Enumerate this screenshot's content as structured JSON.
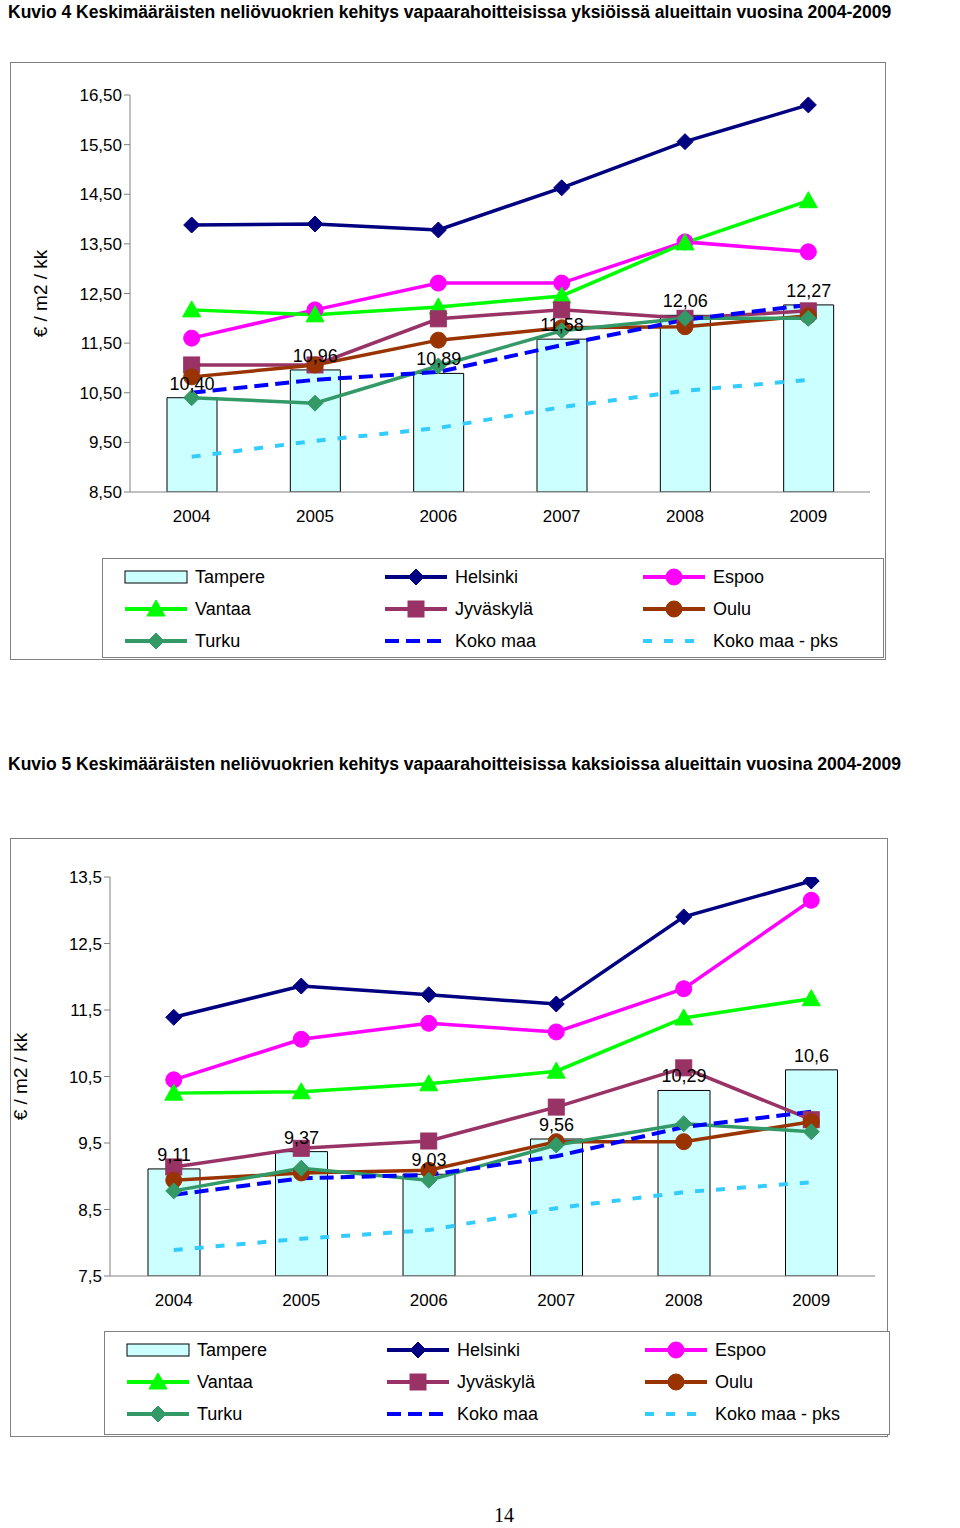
{
  "chart_data": [
    {
      "type": "bar",
      "title": "Kuvio 4 Keskimääräisten neliövuokrien kehitys vapaarahoitteisissa yksiöissä alueittain vuosina 2004-2009",
      "ylabel": "€ / m2 / kk",
      "categories": [
        "2004",
        "2005",
        "2006",
        "2007",
        "2008",
        "2009"
      ],
      "ylim": [
        8.5,
        16.5
      ],
      "yticks": [
        {
          "value": 8.5,
          "label": "8,50"
        },
        {
          "value": 9.5,
          "label": "9,50"
        },
        {
          "value": 10.5,
          "label": "10,50"
        },
        {
          "value": 11.5,
          "label": "11,50"
        },
        {
          "value": 12.5,
          "label": "12,50"
        },
        {
          "value": 13.5,
          "label": "13,50"
        },
        {
          "value": 14.5,
          "label": "14,50"
        },
        {
          "value": 15.5,
          "label": "15,50"
        },
        {
          "value": 16.5,
          "label": "16,50"
        }
      ],
      "grid": false,
      "legend": "bottom",
      "data_labels": true,
      "series": [
        {
          "name": "Tampere",
          "type": "bar",
          "color": "#ccffff",
          "values": [
            10.4,
            10.96,
            10.89,
            11.58,
            12.06,
            12.27
          ],
          "value_labels": [
            "10,40",
            "10,96",
            "10,89",
            "11,58",
            "12,06",
            "12,27"
          ]
        },
        {
          "name": "Helsinki",
          "type": "line",
          "color": "#000080",
          "marker": "diamond",
          "line_style": "solid",
          "values": [
            13.88,
            13.9,
            13.78,
            14.63,
            15.56,
            16.3
          ]
        },
        {
          "name": "Espoo",
          "type": "line",
          "color": "#ff00ff",
          "marker": "circle",
          "line_style": "solid",
          "values": [
            11.6,
            12.17,
            12.71,
            12.71,
            13.54,
            13.34
          ]
        },
        {
          "name": "Vantaa",
          "type": "line",
          "color": "#00ff00",
          "marker": "triangle",
          "line_style": "solid",
          "values": [
            12.17,
            12.07,
            12.23,
            12.45,
            13.52,
            14.37
          ]
        },
        {
          "name": "Jyväskylä",
          "type": "line",
          "color": "#993366",
          "marker": "square",
          "line_style": "solid",
          "values": [
            11.06,
            11.06,
            11.99,
            12.17,
            12.0,
            12.15
          ]
        },
        {
          "name": "Oulu",
          "type": "line",
          "color": "#993300",
          "marker": "circle",
          "line_style": "solid",
          "values": [
            10.82,
            11.06,
            11.56,
            11.81,
            11.83,
            12.05
          ]
        },
        {
          "name": "Turku",
          "type": "line",
          "color": "#339966",
          "marker": "diamond",
          "line_style": "solid",
          "values": [
            10.4,
            10.29,
            11.04,
            11.75,
            12.0,
            12.0
          ]
        },
        {
          "name": "Koko maa",
          "type": "line",
          "color": "#0000ff",
          "marker": "none",
          "line_style": "dashed",
          "values": [
            10.5,
            10.76,
            10.92,
            11.46,
            11.97,
            12.27
          ]
        },
        {
          "name": "Koko maa - pks",
          "type": "line",
          "color": "#33ccff",
          "marker": "none",
          "line_style": "dashed",
          "values": [
            9.21,
            9.53,
            9.79,
            10.21,
            10.54,
            10.76
          ]
        }
      ]
    },
    {
      "type": "bar",
      "title": "Kuvio 5 Keskimääräisten neliövuokrien kehitys vapaarahoitteisissa kaksioissa alueittain vuosina 2004-2009",
      "ylabel": "€ / m2 / kk",
      "categories": [
        "2004",
        "2005",
        "2006",
        "2007",
        "2008",
        "2009"
      ],
      "ylim": [
        7.5,
        13.5
      ],
      "yticks": [
        {
          "value": 7.5,
          "label": "7,5"
        },
        {
          "value": 8.5,
          "label": "8,5"
        },
        {
          "value": 9.5,
          "label": "9,5"
        },
        {
          "value": 10.5,
          "label": "10,5"
        },
        {
          "value": 11.5,
          "label": "11,5"
        },
        {
          "value": 12.5,
          "label": "12,5"
        },
        {
          "value": 13.5,
          "label": "13,5"
        }
      ],
      "grid": false,
      "legend": "bottom",
      "data_labels": true,
      "series": [
        {
          "name": "Tampere",
          "type": "bar",
          "color": "#ccffff",
          "values": [
            9.11,
            9.37,
            9.03,
            9.56,
            10.29,
            10.6
          ],
          "value_labels": [
            "9,11",
            "9,37",
            "9,03",
            "9,56",
            "10,29",
            "10,6"
          ]
        },
        {
          "name": "Helsinki",
          "type": "line",
          "color": "#000080",
          "marker": "diamond",
          "line_style": "solid",
          "values": [
            11.39,
            11.86,
            11.73,
            11.59,
            12.9,
            13.44
          ]
        },
        {
          "name": "Espoo",
          "type": "line",
          "color": "#ff00ff",
          "marker": "circle",
          "line_style": "solid",
          "values": [
            10.45,
            11.06,
            11.3,
            11.17,
            11.82,
            13.15
          ]
        },
        {
          "name": "Vantaa",
          "type": "line",
          "color": "#00ff00",
          "marker": "triangle",
          "line_style": "solid",
          "values": [
            10.25,
            10.27,
            10.39,
            10.58,
            11.38,
            11.67
          ]
        },
        {
          "name": "Jyväskylä",
          "type": "line",
          "color": "#993366",
          "marker": "square",
          "line_style": "solid",
          "values": [
            9.14,
            9.42,
            9.53,
            10.04,
            10.63,
            9.85
          ]
        },
        {
          "name": "Oulu",
          "type": "line",
          "color": "#993300",
          "marker": "circle",
          "line_style": "solid",
          "values": [
            8.94,
            9.05,
            9.09,
            9.52,
            9.52,
            9.82
          ]
        },
        {
          "name": "Turku",
          "type": "line",
          "color": "#339966",
          "marker": "diamond",
          "line_style": "solid",
          "values": [
            8.78,
            9.12,
            8.94,
            9.47,
            9.79,
            9.67
          ]
        },
        {
          "name": "Koko maa",
          "type": "line",
          "color": "#0000ff",
          "marker": "none",
          "line_style": "dashed",
          "values": [
            8.72,
            8.97,
            9.02,
            9.3,
            9.74,
            9.97
          ]
        },
        {
          "name": "Koko maa - pks",
          "type": "line",
          "color": "#33ccff",
          "marker": "none",
          "line_style": "dashed",
          "values": [
            7.89,
            8.06,
            8.19,
            8.52,
            8.76,
            8.91
          ]
        }
      ]
    }
  ],
  "page_number": 14
}
